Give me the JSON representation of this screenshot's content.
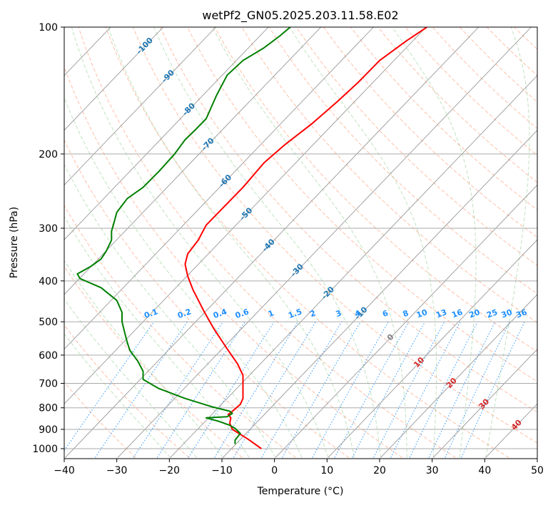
{
  "chart_data": {
    "type": "line",
    "title": "wetPf2_GN05.2025.203.11.58.E02",
    "xlabel": "Temperature (°C)",
    "ylabel": "Pressure (hPa)",
    "xlim": [
      -40,
      50
    ],
    "ylim": [
      1050,
      100
    ],
    "y_scale": "log",
    "grid": true,
    "x_ticks": [
      -40,
      -30,
      -20,
      -10,
      0,
      10,
      20,
      30,
      40,
      50
    ],
    "y_ticks": [
      100,
      200,
      300,
      400,
      500,
      600,
      700,
      800,
      900,
      1000
    ],
    "series": [
      {
        "color": "#ff0000",
        "points": [
          [
            -2.5,
            1000
          ],
          [
            -5,
            950
          ],
          [
            -8,
            900
          ],
          [
            -8.5,
            870
          ],
          [
            -8.3,
            845
          ],
          [
            -8.8,
            830
          ],
          [
            -8,
            815
          ],
          [
            -6.5,
            785
          ],
          [
            -6,
            760
          ],
          [
            -6,
            700
          ],
          [
            -6,
            670
          ],
          [
            -7,
            630
          ],
          [
            -9,
            580
          ],
          [
            -11.5,
            520
          ],
          [
            -13.5,
            470
          ],
          [
            -15.5,
            420
          ],
          [
            -16.5,
            390
          ],
          [
            -17,
            365
          ],
          [
            -16.5,
            345
          ],
          [
            -14.5,
            320
          ],
          [
            -13,
            295
          ],
          [
            -10,
            270
          ],
          [
            -6,
            240
          ],
          [
            -2,
            210
          ],
          [
            2,
            190
          ],
          [
            7,
            170
          ],
          [
            12,
            150
          ],
          [
            16,
            135
          ],
          [
            20,
            120
          ],
          [
            25,
            108
          ],
          [
            29,
            100
          ]
        ]
      },
      {
        "color": "#008000",
        "points": [
          [
            -7.5,
            975
          ],
          [
            -7.5,
            955
          ],
          [
            -6.5,
            920
          ],
          [
            -7.5,
            895
          ],
          [
            -8.5,
            880
          ],
          [
            -10.5,
            862
          ],
          [
            -13,
            845
          ],
          [
            -9,
            840
          ],
          [
            -8,
            825
          ],
          [
            -8.5,
            815
          ],
          [
            -12,
            795
          ],
          [
            -17,
            760
          ],
          [
            -22,
            720
          ],
          [
            -25,
            685
          ],
          [
            -25,
            655
          ],
          [
            -26,
            620
          ],
          [
            -27.5,
            585
          ],
          [
            -28,
            560
          ],
          [
            -28.5,
            530
          ],
          [
            -29,
            500
          ],
          [
            -29,
            475
          ],
          [
            -30,
            445
          ],
          [
            -33,
            415
          ],
          [
            -37,
            395
          ],
          [
            -37.5,
            385
          ],
          [
            -35,
            370
          ],
          [
            -33,
            355
          ],
          [
            -32,
            340
          ],
          [
            -31,
            320
          ],
          [
            -31,
            305
          ],
          [
            -30.5,
            290
          ],
          [
            -30,
            275
          ],
          [
            -28,
            255
          ],
          [
            -25,
            240
          ],
          [
            -22,
            220
          ],
          [
            -19,
            200
          ],
          [
            -17,
            185
          ],
          [
            -15,
            175
          ],
          [
            -13,
            165
          ],
          [
            -11,
            145
          ],
          [
            -9,
            130
          ],
          [
            -6,
            120
          ],
          [
            -2,
            112
          ],
          [
            1,
            105
          ],
          [
            3,
            100
          ]
        ]
      }
    ],
    "isotherm_labels": [
      "-100",
      "-90",
      "-80",
      "-70",
      "-60",
      "-50",
      "-40",
      "-30",
      "-20",
      "-10",
      "0",
      "10",
      "20",
      "30",
      "40"
    ],
    "mixing_ratio_labels": [
      "0.1",
      "0.2",
      "0.4",
      "0.6",
      "1",
      "1.5",
      "2",
      "3",
      "4",
      "6",
      "8",
      "10",
      "13",
      "16",
      "20",
      "25",
      "30",
      "36"
    ],
    "colors": {
      "temperature": "#ff0000",
      "dewpoint": "#008000",
      "isotherm_cold": "#1f77b4",
      "isotherm_warm": "#d62728",
      "isotherm_zero": "#808080",
      "mixing_ratio": "#1e90ff",
      "dry_adiabat": "#ff7f50",
      "moist_adiabat": "#2ca02c",
      "background": "#ffffff"
    }
  }
}
